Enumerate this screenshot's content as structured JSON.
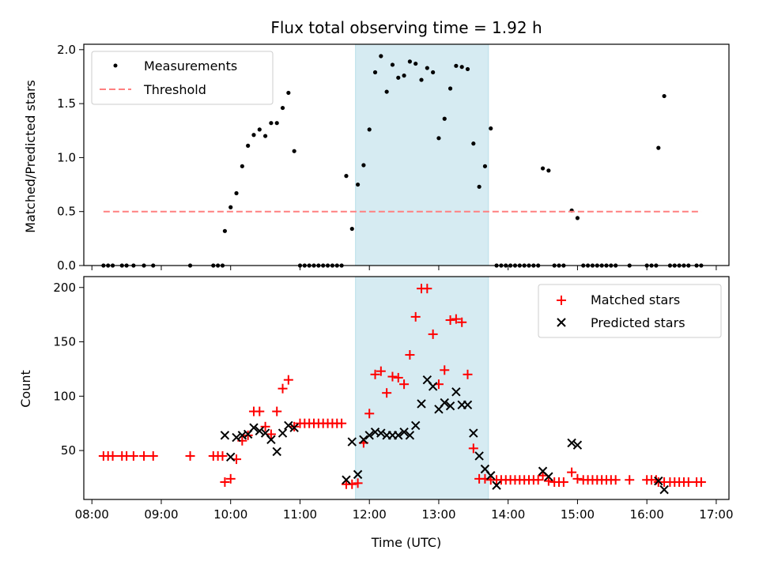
{
  "colors": {
    "measurements": "#000000",
    "threshold": "#ff8080",
    "matched": "#ff0000",
    "predicted": "#000000",
    "shade": "#add8e6"
  },
  "chart_data": [
    {
      "type": "scatter",
      "title": "Flux total observing time = 1.92 h",
      "xlabel": "",
      "ylabel": "Matched/Predicted stars",
      "xlim": [
        "07:53",
        "17:11"
      ],
      "ylim": [
        0,
        2.05
      ],
      "yticks": [
        "0.0",
        "0.5",
        "1.0",
        "1.5",
        "2.0"
      ],
      "grid": false,
      "legend_position": "top-left",
      "shaded_interval": [
        "11:48",
        "13:43"
      ],
      "series": [
        {
          "name": "Measurements",
          "marker": "dot",
          "points": [
            [
              "08:10",
              0
            ],
            [
              "08:14",
              0
            ],
            [
              "08:18",
              0
            ],
            [
              "08:26",
              0
            ],
            [
              "08:30",
              0
            ],
            [
              "08:36",
              0
            ],
            [
              "08:45",
              0
            ],
            [
              "08:53",
              0
            ],
            [
              "09:25",
              0
            ],
            [
              "09:45",
              0
            ],
            [
              "09:49",
              0
            ],
            [
              "09:53",
              0
            ],
            [
              "09:55",
              0.32
            ],
            [
              "10:00",
              0.54
            ],
            [
              "10:05",
              0.67
            ],
            [
              "10:10",
              0.92
            ],
            [
              "10:15",
              1.11
            ],
            [
              "10:20",
              1.21
            ],
            [
              "10:25",
              1.26
            ],
            [
              "10:30",
              1.2
            ],
            [
              "10:35",
              1.32
            ],
            [
              "10:40",
              1.32
            ],
            [
              "10:45",
              1.46
            ],
            [
              "10:50",
              1.6
            ],
            [
              "10:55",
              1.06
            ],
            [
              "11:00",
              0
            ],
            [
              "11:04",
              0
            ],
            [
              "11:08",
              0
            ],
            [
              "11:12",
              0
            ],
            [
              "11:16",
              0
            ],
            [
              "11:20",
              0
            ],
            [
              "11:24",
              0
            ],
            [
              "11:28",
              0
            ],
            [
              "11:32",
              0
            ],
            [
              "11:36",
              0
            ],
            [
              "11:40",
              0.83
            ],
            [
              "11:45",
              0.34
            ],
            [
              "11:50",
              0.75
            ],
            [
              "11:55",
              0.93
            ],
            [
              "12:00",
              1.26
            ],
            [
              "12:05",
              1.79
            ],
            [
              "12:10",
              1.94
            ],
            [
              "12:15",
              1.61
            ],
            [
              "12:20",
              1.86
            ],
            [
              "12:25",
              1.74
            ],
            [
              "12:30",
              1.76
            ],
            [
              "12:35",
              1.89
            ],
            [
              "12:40",
              1.87
            ],
            [
              "12:45",
              1.72
            ],
            [
              "12:50",
              1.83
            ],
            [
              "12:55",
              1.79
            ],
            [
              "13:00",
              1.18
            ],
            [
              "13:05",
              1.36
            ],
            [
              "13:10",
              1.64
            ],
            [
              "13:15",
              1.85
            ],
            [
              "13:20",
              1.84
            ],
            [
              "13:25",
              1.82
            ],
            [
              "13:30",
              1.13
            ],
            [
              "13:35",
              0.73
            ],
            [
              "13:40",
              0.92
            ],
            [
              "13:45",
              1.27
            ],
            [
              "13:50",
              0
            ],
            [
              "13:54",
              0
            ],
            [
              "13:58",
              0
            ],
            [
              "14:02",
              0
            ],
            [
              "14:06",
              0
            ],
            [
              "14:10",
              0
            ],
            [
              "14:14",
              0
            ],
            [
              "14:18",
              0
            ],
            [
              "14:22",
              0
            ],
            [
              "14:26",
              0
            ],
            [
              "14:30",
              0.9
            ],
            [
              "14:35",
              0.88
            ],
            [
              "14:40",
              0
            ],
            [
              "14:44",
              0
            ],
            [
              "14:48",
              0
            ],
            [
              "14:55",
              0.51
            ],
            [
              "15:00",
              0.44
            ],
            [
              "15:05",
              0
            ],
            [
              "15:09",
              0
            ],
            [
              "15:13",
              0
            ],
            [
              "15:17",
              0
            ],
            [
              "15:21",
              0
            ],
            [
              "15:25",
              0
            ],
            [
              "15:29",
              0
            ],
            [
              "15:33",
              0
            ],
            [
              "15:45",
              0
            ],
            [
              "16:00",
              0
            ],
            [
              "16:04",
              0
            ],
            [
              "16:08",
              0
            ],
            [
              "16:10",
              1.09
            ],
            [
              "16:15",
              1.57
            ],
            [
              "16:20",
              0
            ],
            [
              "16:24",
              0
            ],
            [
              "16:28",
              0
            ],
            [
              "16:32",
              0
            ],
            [
              "16:36",
              0
            ],
            [
              "16:43",
              0
            ],
            [
              "16:47",
              0
            ]
          ]
        },
        {
          "name": "Threshold",
          "marker": "dashed-line",
          "points": [
            [
              "08:10",
              0.5
            ],
            [
              "16:47",
              0.5
            ]
          ]
        }
      ]
    },
    {
      "type": "scatter",
      "title": "",
      "xlabel": "Time (UTC)",
      "ylabel": "Count",
      "xlim": [
        "07:53",
        "17:11"
      ],
      "ylim": [
        5,
        210
      ],
      "xticks": [
        "08:00",
        "09:00",
        "10:00",
        "11:00",
        "12:00",
        "13:00",
        "14:00",
        "15:00",
        "16:00",
        "17:00"
      ],
      "yticks": [
        "50",
        "100",
        "150",
        "200"
      ],
      "grid": false,
      "legend_position": "top-right",
      "shaded_interval": [
        "11:48",
        "13:43"
      ],
      "series": [
        {
          "name": "Matched stars",
          "marker": "plus",
          "points": [
            [
              "08:10",
              45
            ],
            [
              "08:14",
              45
            ],
            [
              "08:18",
              45
            ],
            [
              "08:26",
              45
            ],
            [
              "08:30",
              45
            ],
            [
              "08:36",
              45
            ],
            [
              "08:45",
              45
            ],
            [
              "08:53",
              45
            ],
            [
              "09:25",
              45
            ],
            [
              "09:45",
              45
            ],
            [
              "09:49",
              45
            ],
            [
              "09:53",
              45
            ],
            [
              "09:55",
              21
            ],
            [
              "10:00",
              24
            ],
            [
              "10:05",
              42
            ],
            [
              "10:10",
              59
            ],
            [
              "10:15",
              64
            ],
            [
              "10:20",
              86
            ],
            [
              "10:25",
              86
            ],
            [
              "10:30",
              72
            ],
            [
              "10:35",
              65
            ],
            [
              "10:40",
              86
            ],
            [
              "10:45",
              107
            ],
            [
              "10:50",
              115
            ],
            [
              "10:55",
              72
            ],
            [
              "11:00",
              75
            ],
            [
              "11:04",
              75
            ],
            [
              "11:08",
              75
            ],
            [
              "11:12",
              75
            ],
            [
              "11:16",
              75
            ],
            [
              "11:20",
              75
            ],
            [
              "11:24",
              75
            ],
            [
              "11:28",
              75
            ],
            [
              "11:32",
              75
            ],
            [
              "11:36",
              75
            ],
            [
              "11:40",
              19
            ],
            [
              "11:45",
              19
            ],
            [
              "11:50",
              20
            ],
            [
              "11:55",
              57
            ],
            [
              "12:00",
              84
            ],
            [
              "12:05",
              120
            ],
            [
              "12:10",
              123
            ],
            [
              "12:15",
              103
            ],
            [
              "12:20",
              118
            ],
            [
              "12:25",
              117
            ],
            [
              "12:30",
              111
            ],
            [
              "12:35",
              138
            ],
            [
              "12:40",
              173
            ],
            [
              "12:45",
              199
            ],
            [
              "12:50",
              199
            ],
            [
              "12:55",
              157
            ],
            [
              "13:00",
              111
            ],
            [
              "13:05",
              124
            ],
            [
              "13:10",
              170
            ],
            [
              "13:15",
              171
            ],
            [
              "13:20",
              168
            ],
            [
              "13:25",
              120
            ],
            [
              "13:30",
              52
            ],
            [
              "13:35",
              24
            ],
            [
              "13:40",
              24
            ],
            [
              "13:45",
              23
            ],
            [
              "13:50",
              23
            ],
            [
              "13:54",
              23
            ],
            [
              "13:58",
              23
            ],
            [
              "14:02",
              23
            ],
            [
              "14:06",
              23
            ],
            [
              "14:10",
              23
            ],
            [
              "14:14",
              23
            ],
            [
              "14:18",
              23
            ],
            [
              "14:22",
              23
            ],
            [
              "14:26",
              23
            ],
            [
              "14:30",
              27
            ],
            [
              "14:35",
              22
            ],
            [
              "14:40",
              21
            ],
            [
              "14:44",
              21
            ],
            [
              "14:48",
              21
            ],
            [
              "14:55",
              30
            ],
            [
              "15:00",
              24
            ],
            [
              "15:05",
              23
            ],
            [
              "15:09",
              23
            ],
            [
              "15:13",
              23
            ],
            [
              "15:17",
              23
            ],
            [
              "15:21",
              23
            ],
            [
              "15:25",
              23
            ],
            [
              "15:29",
              23
            ],
            [
              "15:33",
              23
            ],
            [
              "15:45",
              23
            ],
            [
              "16:00",
              23
            ],
            [
              "16:04",
              23
            ],
            [
              "16:08",
              23
            ],
            [
              "16:10",
              21
            ],
            [
              "16:15",
              21
            ],
            [
              "16:20",
              21
            ],
            [
              "16:24",
              21
            ],
            [
              "16:28",
              21
            ],
            [
              "16:32",
              21
            ],
            [
              "16:36",
              21
            ],
            [
              "16:43",
              21
            ],
            [
              "16:47",
              21
            ]
          ]
        },
        {
          "name": "Predicted stars",
          "marker": "x",
          "points": [
            [
              "09:55",
              64
            ],
            [
              "10:00",
              44
            ],
            [
              "10:05",
              62
            ],
            [
              "10:10",
              64
            ],
            [
              "10:15",
              65
            ],
            [
              "10:20",
              71
            ],
            [
              "10:25",
              68
            ],
            [
              "10:30",
              66
            ],
            [
              "10:35",
              60
            ],
            [
              "10:40",
              49
            ],
            [
              "10:45",
              66
            ],
            [
              "10:50",
              73
            ],
            [
              "10:55",
              71
            ],
            [
              "11:40",
              23
            ],
            [
              "11:45",
              58
            ],
            [
              "11:50",
              28
            ],
            [
              "11:55",
              60
            ],
            [
              "12:00",
              64
            ],
            [
              "12:05",
              67
            ],
            [
              "12:10",
              66
            ],
            [
              "12:15",
              64
            ],
            [
              "12:20",
              64
            ],
            [
              "12:25",
              64
            ],
            [
              "12:30",
              67
            ],
            [
              "12:35",
              64
            ],
            [
              "12:40",
              73
            ],
            [
              "12:45",
              93
            ],
            [
              "12:50",
              115
            ],
            [
              "12:55",
              109
            ],
            [
              "13:00",
              88
            ],
            [
              "13:05",
              94
            ],
            [
              "13:10",
              91
            ],
            [
              "13:15",
              104
            ],
            [
              "13:20",
              92
            ],
            [
              "13:25",
              92
            ],
            [
              "13:30",
              66
            ],
            [
              "13:35",
              45
            ],
            [
              "13:40",
              33
            ],
            [
              "13:45",
              27
            ],
            [
              "13:50",
              18
            ],
            [
              "14:30",
              31
            ],
            [
              "14:35",
              26
            ],
            [
              "14:55",
              57
            ],
            [
              "15:00",
              55
            ],
            [
              "16:10",
              22
            ],
            [
              "16:15",
              14
            ]
          ]
        }
      ]
    }
  ]
}
